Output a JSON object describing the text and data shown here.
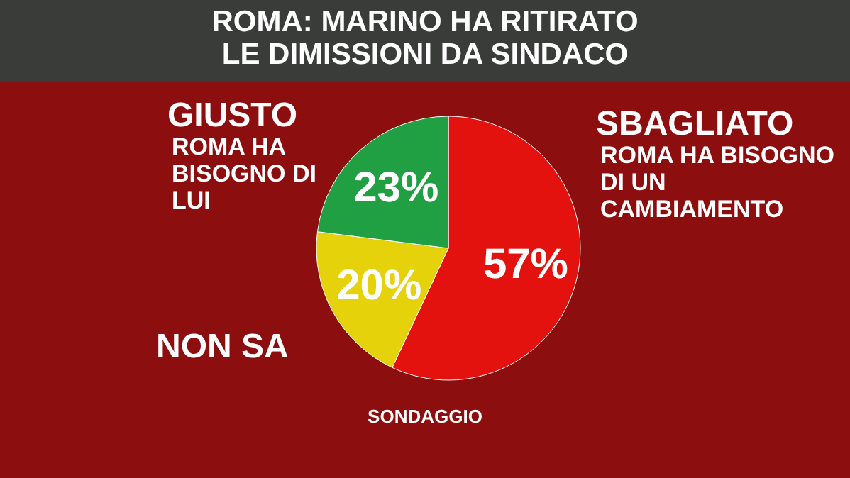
{
  "chart_data": {
    "type": "pie",
    "title": "ROMA: MARINO HA RITIRATO LE DIMISSIONI DA SINDACO",
    "categories": [
      "SBAGLIATO",
      "NON SA",
      "GIUSTO"
    ],
    "values": [
      57,
      20,
      23
    ],
    "colors": [
      "#e3120f",
      "#e6d20a",
      "#21a043"
    ],
    "value_labels": [
      "57%",
      "20%",
      "23%"
    ],
    "annotations": [
      "ROMA HA BISOGNO DI UN CAMBIAMENTO",
      "ROMA HA BISOGNO DI LUI",
      "SONDAGGIO"
    ]
  }
}
